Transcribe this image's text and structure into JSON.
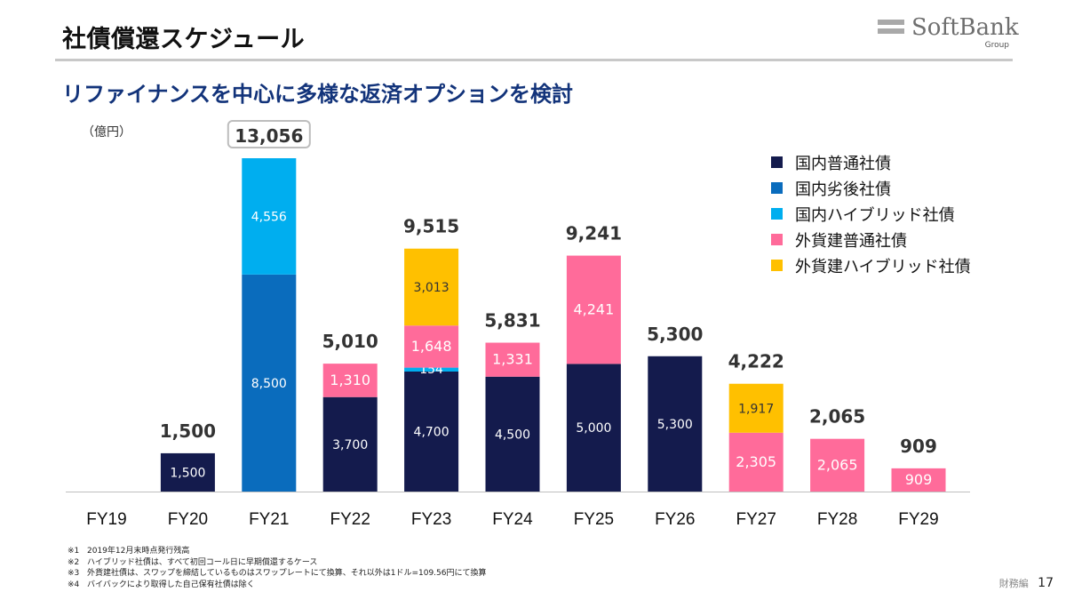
{
  "header": {
    "title": "社債償還スケジュール",
    "subtitle": "リファイナンスを中心に多様な返済オプションを検討"
  },
  "logo": {
    "name": "SoftBank",
    "sub": "Group"
  },
  "chart_data": {
    "type": "bar",
    "stacked": true,
    "unit_label": "（億円）",
    "categories": [
      "FY19",
      "FY20",
      "FY21",
      "FY22",
      "FY23",
      "FY24",
      "FY25",
      "FY26",
      "FY27",
      "FY28",
      "FY29"
    ],
    "series": [
      {
        "name": "国内普通社債",
        "color": "#141b4d",
        "label_color": "#ffffff",
        "values": [
          0,
          1500,
          0,
          3700,
          4700,
          4500,
          5000,
          5300,
          0,
          0,
          0
        ],
        "labels": [
          "",
          "1,500",
          "",
          "3,700",
          "4,700",
          "4,500",
          "5,000",
          "5,300",
          "",
          "",
          ""
        ]
      },
      {
        "name": "国内劣後社債",
        "color": "#0a6cbd",
        "label_color": "#ffffff",
        "values": [
          0,
          0,
          8500,
          0,
          0,
          0,
          0,
          0,
          0,
          0,
          0
        ],
        "labels": [
          "",
          "",
          "8,500",
          "",
          "",
          "",
          "",
          "",
          "",
          "",
          ""
        ]
      },
      {
        "name": "国内ハイブリッド社債",
        "color": "#00aeef",
        "label_color": "#ffffff",
        "values": [
          0,
          0,
          4556,
          0,
          154,
          0,
          0,
          0,
          0,
          0,
          0
        ],
        "labels": [
          "",
          "",
          "4,556",
          "",
          "154",
          "",
          "",
          "",
          "",
          "",
          ""
        ]
      },
      {
        "name": "外貨建普通社債",
        "color": "#ff6b9a",
        "label_color": "#ffffff",
        "values": [
          0,
          0,
          0,
          1310,
          1648,
          1331,
          4241,
          0,
          2305,
          2065,
          909
        ],
        "labels": [
          "",
          "",
          "",
          "1,310",
          "1,648",
          "1,331",
          "4,241",
          "",
          "2,305",
          "2,065",
          "909"
        ]
      },
      {
        "name": "外貨建ハイブリッド社債",
        "color": "#ffc000",
        "label_color": "#333333",
        "values": [
          0,
          0,
          0,
          0,
          3013,
          0,
          0,
          0,
          1917,
          0,
          0
        ],
        "labels": [
          "",
          "",
          "",
          "",
          "3,013",
          "",
          "",
          "",
          "1,917",
          "",
          ""
        ]
      }
    ],
    "totals": [
      0,
      1500,
      13056,
      5010,
      9515,
      5831,
      9241,
      5300,
      4222,
      2065,
      909
    ],
    "total_labels": [
      "",
      "1,500",
      "13,056",
      "5,010",
      "9,515",
      "5,831",
      "9,241",
      "5,300",
      "4,222",
      "2,065",
      "909"
    ],
    "highlighted_total": "FY21",
    "ylim": [
      0,
      13056
    ],
    "legend_position": "top-right",
    "legend_colors": [
      "#141b4d",
      "#0a6cbd",
      "#00aeef",
      "#ff6b9a",
      "#ffc000"
    ],
    "legend_labels": [
      "国内普通社債",
      "国内劣後社債",
      "国内ハイブリッド社債",
      "外貨建普通社債",
      "外貨建ハイブリッド社債"
    ]
  },
  "notes": [
    {
      "mark": "※1",
      "text": "2019年12月末時点発行残高"
    },
    {
      "mark": "※2",
      "text": "ハイブリッド社債は、すべて初回コール日に早期償還するケース"
    },
    {
      "mark": "※3",
      "text": "外貨建社債は、スワップを締結しているものはスワップレートにて換算、それ以外は1ドル=109.56円にて換算"
    },
    {
      "mark": "※4",
      "text": "バイバックにより取得した自己保有社債は除く"
    }
  ],
  "footer": {
    "section": "財務編",
    "page": "17"
  }
}
